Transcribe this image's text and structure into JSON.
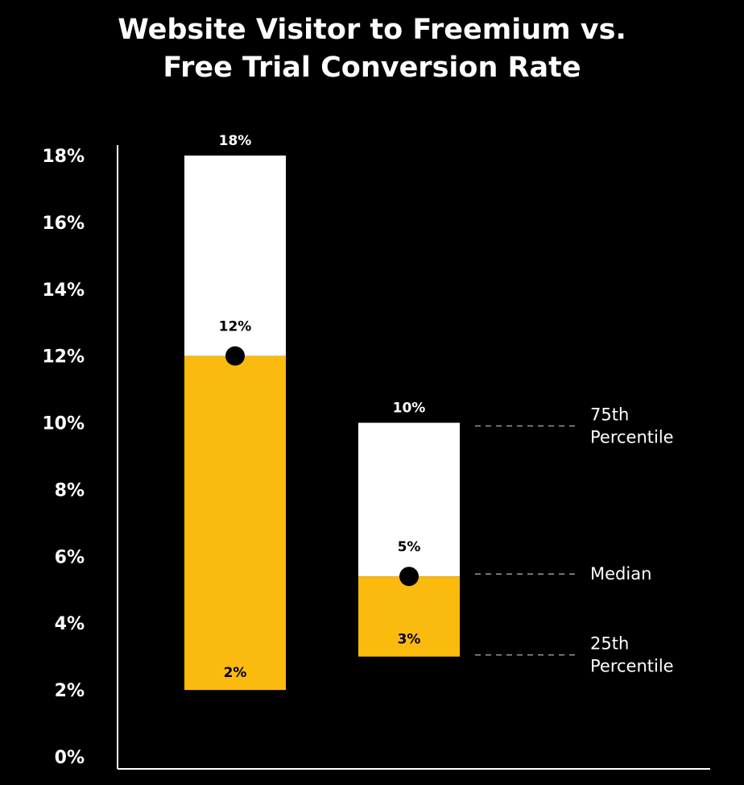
{
  "chart_data": {
    "type": "bar",
    "title_lines": [
      "Website Visitor to Freemium vs.",
      "Free Trial Conversion Rate"
    ],
    "ylim": [
      0,
      18
    ],
    "yticks": [
      {
        "value": 0,
        "label": "0%"
      },
      {
        "value": 2,
        "label": "2%"
      },
      {
        "value": 4,
        "label": "4%"
      },
      {
        "value": 6,
        "label": "6%"
      },
      {
        "value": 8,
        "label": "8%"
      },
      {
        "value": 10,
        "label": "10%"
      },
      {
        "value": 12,
        "label": "12%"
      },
      {
        "value": 14,
        "label": "14%"
      },
      {
        "value": 16,
        "label": "16%"
      },
      {
        "value": 18,
        "label": "18%"
      }
    ],
    "boxes": [
      {
        "p25": 2,
        "median": 12,
        "p75": 18,
        "p25_label": "2%",
        "median_label": "12%",
        "p75_label": "18%"
      },
      {
        "p25": 3,
        "median": 5.4,
        "p75": 10,
        "p25_label": "3%",
        "median_label": "5%",
        "p75_label": "10%"
      }
    ],
    "annotations": [
      {
        "lines": [
          "75th",
          "Percentile"
        ],
        "refers_to": "p75"
      },
      {
        "lines": [
          "Median"
        ],
        "refers_to": "median"
      },
      {
        "lines": [
          "25th",
          "Percentile"
        ],
        "refers_to": "p25"
      }
    ],
    "colors": {
      "background": "#000000",
      "lower_box": "#FBBA0E",
      "upper_box": "#FFFFFF",
      "median_marker": "#000000",
      "guide_line": "#9A9A9A",
      "text": "#FFFFFF"
    }
  }
}
